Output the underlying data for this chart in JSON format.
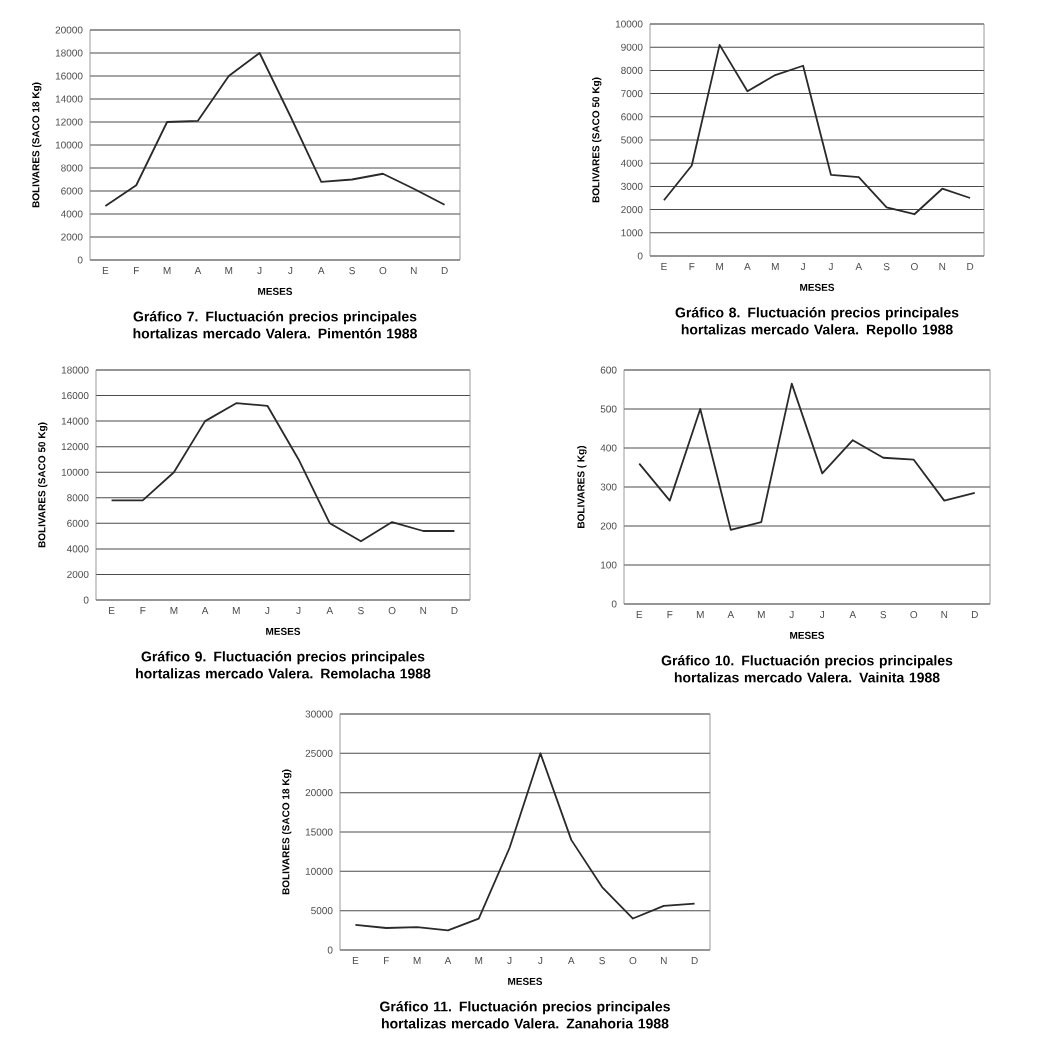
{
  "chart_data": [
    {
      "type": "line",
      "title": "Gráfico 7. Fluctuación precios principales hortalizas mercado Valera. Pimentón 1988",
      "xlabel": "MESES",
      "ylabel": "BOLIVARES (SACO 18 Kg)",
      "categories": [
        "E",
        "F",
        "M",
        "A",
        "M",
        "J",
        "J",
        "A",
        "S",
        "O",
        "N",
        "D"
      ],
      "values": [
        4700,
        6500,
        12000,
        12100,
        16000,
        18000,
        12500,
        6800,
        7000,
        7500,
        6200,
        4800
      ],
      "color": "#2a2a2a",
      "ylim": [
        0,
        20000
      ],
      "yticks": [
        0,
        2000,
        4000,
        6000,
        8000,
        10000,
        12000,
        14000,
        16000,
        18000,
        20000
      ],
      "grid": "y"
    },
    {
      "type": "line",
      "title": "Gráfico 8. Fluctuación precios principales hortalizas mercado Valera. Repollo 1988",
      "xlabel": "MESES",
      "ylabel": "BOLIVARES (SACO 50 Kg)",
      "categories": [
        "E",
        "F",
        "M",
        "A",
        "M",
        "J",
        "J",
        "A",
        "S",
        "O",
        "N",
        "D"
      ],
      "values": [
        2400,
        3900,
        9100,
        7100,
        7800,
        8200,
        3500,
        3400,
        2100,
        1800,
        2900,
        2500
      ],
      "color": "#2a2a2a",
      "ylim": [
        0,
        10000
      ],
      "yticks": [
        0,
        1000,
        2000,
        3000,
        4000,
        5000,
        6000,
        7000,
        8000,
        9000,
        10000
      ],
      "grid": "y"
    },
    {
      "type": "line",
      "title": "Gráfico 9. Fluctuación precios principales hortalizas mercado Valera. Remolacha 1988",
      "xlabel": "MESES",
      "ylabel": "BOLIVARES (SACO 50 Kg)",
      "categories": [
        "E",
        "F",
        "M",
        "A",
        "M",
        "J",
        "J",
        "A",
        "S",
        "O",
        "N",
        "D"
      ],
      "values": [
        7800,
        7800,
        10000,
        14000,
        15400,
        15200,
        11000,
        6000,
        4600,
        6100,
        5400,
        5400
      ],
      "color": "#2a2a2a",
      "ylim": [
        0,
        18000
      ],
      "yticks": [
        0,
        2000,
        4000,
        6000,
        8000,
        10000,
        12000,
        14000,
        16000,
        18000
      ],
      "grid": "y"
    },
    {
      "type": "line",
      "title": "Gráfico 10. Fluctuación precios principales hortalizas mercado Valera. Vainita 1988",
      "xlabel": "MESES",
      "ylabel": "BOLIVARES ( Kg)",
      "categories": [
        "E",
        "F",
        "M",
        "A",
        "M",
        "J",
        "J",
        "A",
        "S",
        "O",
        "N",
        "D"
      ],
      "values": [
        360,
        265,
        500,
        190,
        210,
        565,
        335,
        420,
        375,
        370,
        265,
        285
      ],
      "color": "#2a2a2a",
      "ylim": [
        0,
        600
      ],
      "yticks": [
        0,
        100,
        200,
        300,
        400,
        500,
        600
      ],
      "grid": "y"
    },
    {
      "type": "line",
      "title": "Gráfico 11. Fluctuación precios principales hortalizas mercado Valera. Zanahoria 1988",
      "xlabel": "MESES",
      "ylabel": "BOLIVARES (SACO 18 Kg)",
      "categories": [
        "E",
        "F",
        "M",
        "A",
        "M",
        "J",
        "J",
        "A",
        "S",
        "O",
        "N",
        "D"
      ],
      "values": [
        3200,
        2800,
        2900,
        2500,
        4000,
        13000,
        25000,
        14000,
        8000,
        4000,
        5600,
        5900
      ],
      "color": "#2a2a2a",
      "ylim": [
        0,
        30000
      ],
      "yticks": [
        0,
        5000,
        10000,
        15000,
        20000,
        25000,
        30000
      ],
      "grid": "y"
    }
  ]
}
